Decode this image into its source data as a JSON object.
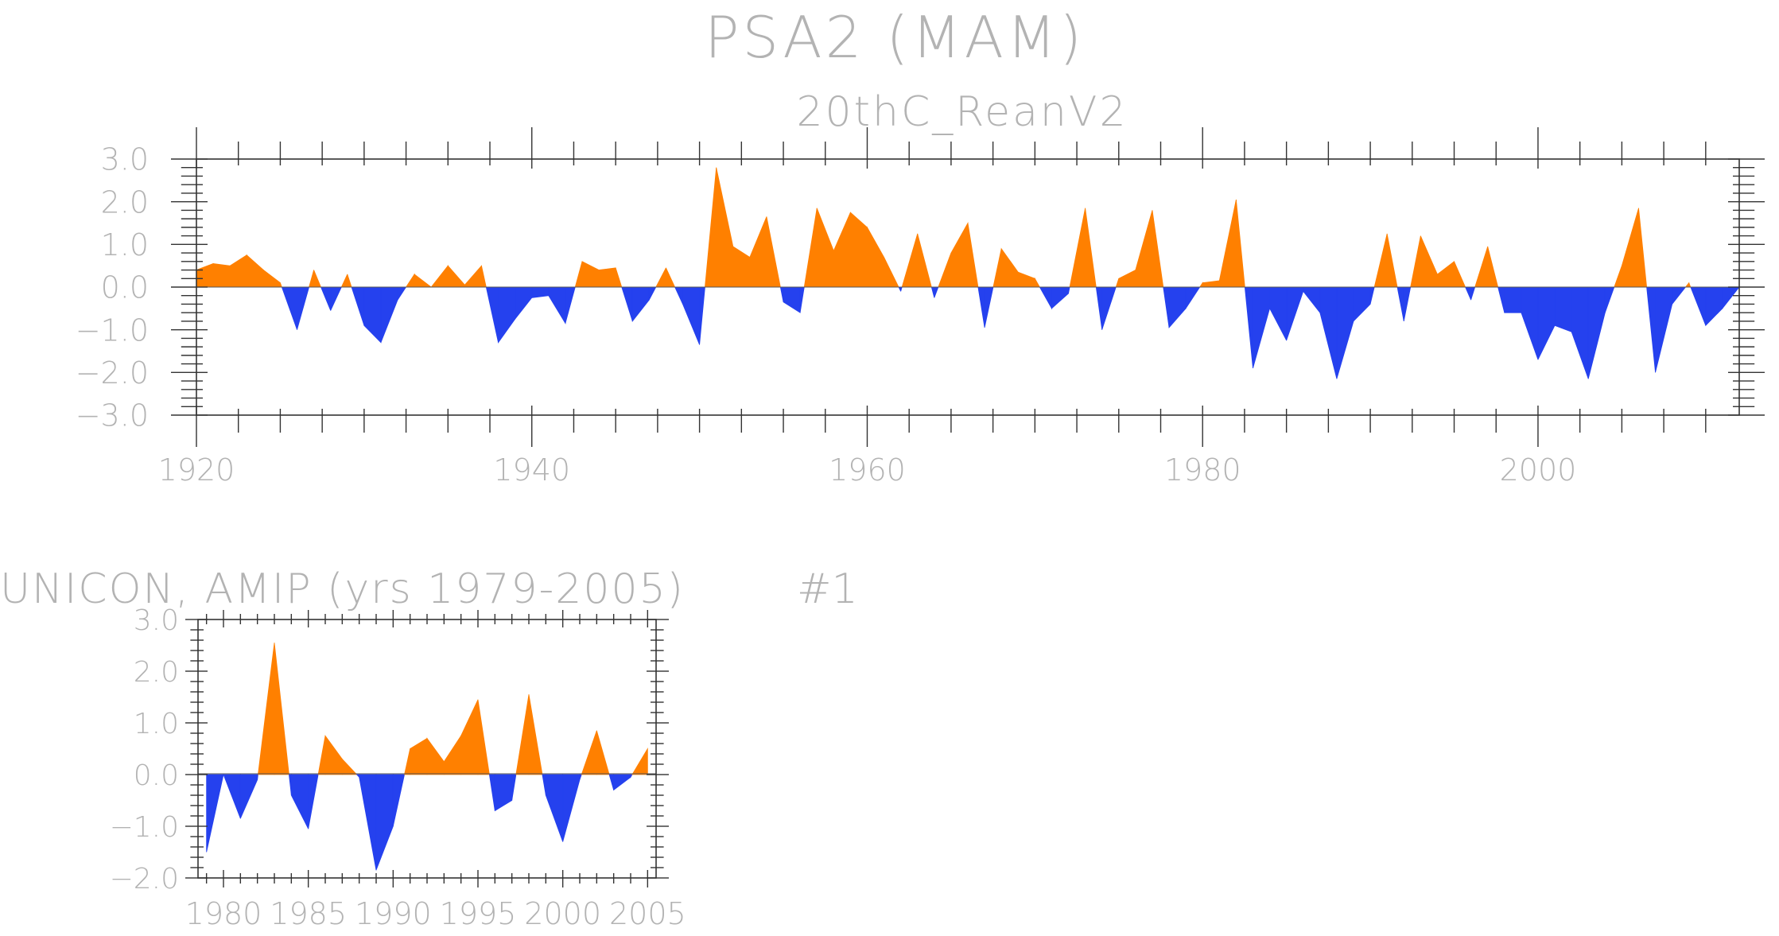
{
  "colors": {
    "positive": "#ff8000",
    "negative": "#2541ee",
    "text": "#b3b3b3",
    "axis": "#333333"
  },
  "chart_data": [
    {
      "type": "area",
      "title": "PSA2 (MAM)",
      "subtitle": "20thC_ReanV2",
      "xlim": [
        1920,
        2012
      ],
      "ylim": [
        -3,
        3
      ],
      "x_ticks": [
        1920,
        1940,
        1960,
        1980,
        2000
      ],
      "x_tick_labels": [
        "1920",
        "1940",
        "1960",
        "1980",
        "2000"
      ],
      "y_ticks": [
        3,
        2,
        1,
        0,
        -1,
        -2,
        -3
      ],
      "y_tick_labels": [
        "3.0",
        "2.0",
        "1.0",
        "0.0",
        "−1.0",
        "−2.0",
        "−3.0"
      ],
      "x": [
        1920,
        1921,
        1922,
        1923,
        1924,
        1925,
        1926,
        1927,
        1928,
        1929,
        1930,
        1931,
        1932,
        1933,
        1934,
        1935,
        1936,
        1937,
        1938,
        1939,
        1940,
        1941,
        1942,
        1943,
        1944,
        1945,
        1946,
        1947,
        1948,
        1949,
        1950,
        1951,
        1952,
        1953,
        1954,
        1955,
        1956,
        1957,
        1958,
        1959,
        1960,
        1961,
        1962,
        1963,
        1964,
        1965,
        1966,
        1967,
        1968,
        1969,
        1970,
        1971,
        1972,
        1973,
        1974,
        1975,
        1976,
        1977,
        1978,
        1979,
        1980,
        1981,
        1982,
        1983,
        1984,
        1985,
        1986,
        1987,
        1988,
        1989,
        1990,
        1991,
        1992,
        1993,
        1994,
        1995,
        1996,
        1997,
        1998,
        1999,
        2000,
        2001,
        2002,
        2003,
        2004,
        2005,
        2006,
        2007,
        2008,
        2009,
        2010,
        2011,
        2012
      ],
      "values": [
        0.4,
        0.55,
        0.5,
        0.75,
        0.4,
        0.1,
        -1.0,
        0.4,
        -0.55,
        0.3,
        -0.9,
        -1.3,
        -0.3,
        0.3,
        0.0,
        0.5,
        0.05,
        0.5,
        -1.3,
        -0.75,
        -0.25,
        -0.2,
        -0.85,
        0.6,
        0.4,
        0.45,
        -0.8,
        -0.3,
        0.45,
        -0.4,
        -1.35,
        2.8,
        0.95,
        0.7,
        1.65,
        -0.35,
        -0.6,
        1.85,
        0.85,
        1.75,
        1.4,
        0.7,
        -0.1,
        1.25,
        -0.25,
        0.8,
        1.5,
        -0.95,
        0.9,
        0.35,
        0.2,
        -0.5,
        -0.15,
        1.85,
        -1.0,
        0.2,
        0.4,
        1.8,
        -0.95,
        -0.5,
        0.1,
        0.15,
        2.05,
        -1.9,
        -0.5,
        -1.25,
        -0.1,
        -0.6,
        -2.15,
        -0.8,
        -0.4,
        1.25,
        -0.8,
        1.2,
        0.3,
        0.6,
        -0.3,
        0.95,
        -0.6,
        -0.6,
        -1.7,
        -0.9,
        -1.05,
        -2.15,
        -0.6,
        0.5,
        1.85,
        -2.0,
        -0.4,
        0.1,
        -0.9,
        -0.5,
        0.0
      ]
    },
    {
      "type": "area",
      "title": "UNICON, AMIP (yrs 1979-2005)",
      "label": "#1",
      "xlim": [
        1978.5,
        2005.5
      ],
      "ylim": [
        -2,
        3
      ],
      "x_ticks": [
        1980,
        1985,
        1990,
        1995,
        2000,
        2005
      ],
      "x_tick_labels": [
        "1980",
        "1985",
        "1990",
        "1995",
        "2000",
        "2005"
      ],
      "y_ticks": [
        3,
        2,
        1,
        0,
        -1,
        -2
      ],
      "y_tick_labels": [
        "3.0",
        "2.0",
        "1.0",
        "0.0",
        "−1.0",
        "−2.0"
      ],
      "x": [
        1979,
        1980,
        1981,
        1982,
        1983,
        1984,
        1985,
        1986,
        1987,
        1988,
        1989,
        1990,
        1991,
        1992,
        1993,
        1994,
        1995,
        1996,
        1997,
        1998,
        1999,
        2000,
        2001,
        2002,
        2003,
        2004,
        2005
      ],
      "values": [
        -1.5,
        0.0,
        -0.85,
        -0.1,
        2.55,
        -0.4,
        -1.05,
        0.75,
        0.3,
        -0.05,
        -1.85,
        -1.0,
        0.5,
        0.7,
        0.25,
        0.75,
        1.45,
        -0.7,
        -0.5,
        1.55,
        -0.4,
        -1.3,
        -0.1,
        0.85,
        -0.3,
        -0.05,
        0.5
      ]
    }
  ]
}
